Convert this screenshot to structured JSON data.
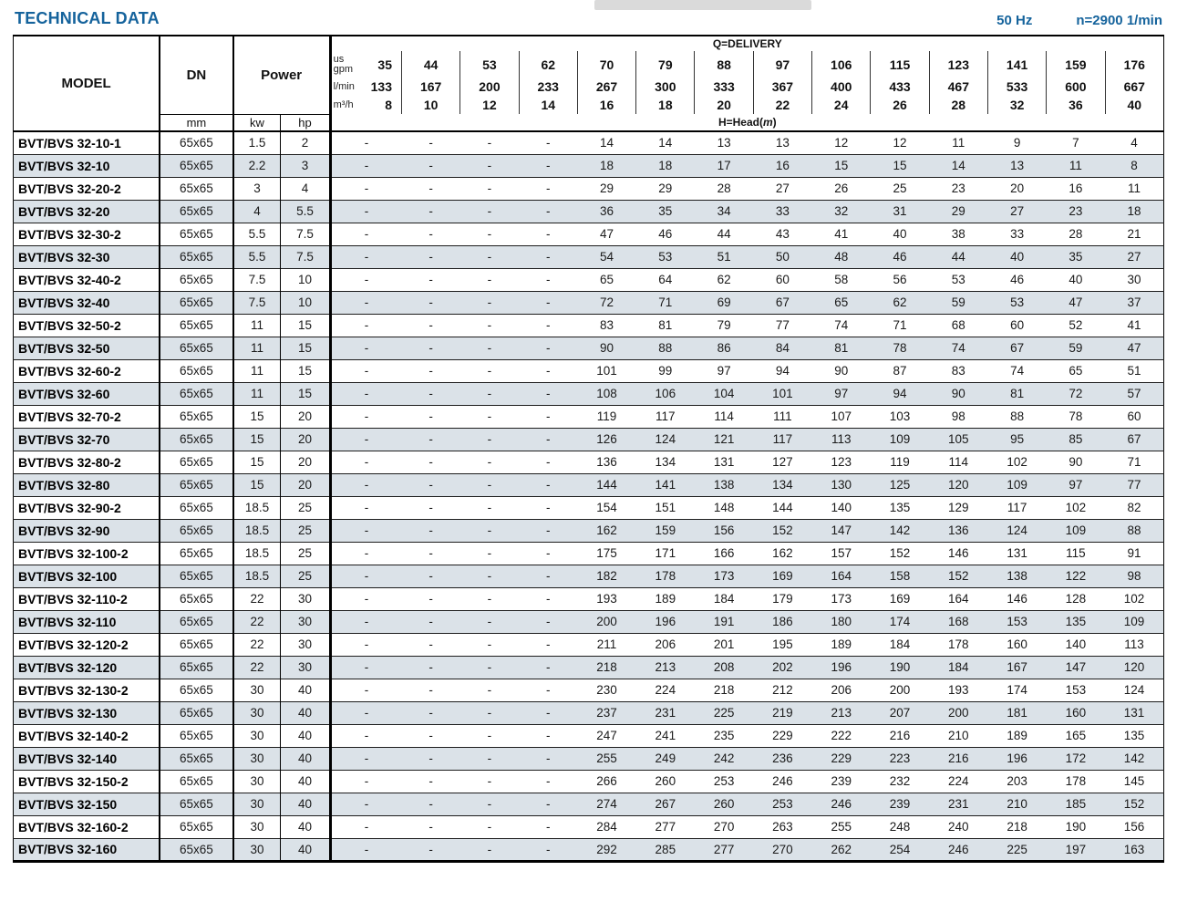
{
  "page": {
    "title": "TECHNICAL DATA",
    "frequency": "50 Hz",
    "speed": "n=2900 1/min"
  },
  "colors": {
    "accent_blue": "#15639c",
    "row_shade": "#dbe2e8",
    "border": "#000000"
  },
  "table": {
    "model_header": "MODEL",
    "dn_header": "DN",
    "dn_unit": "mm",
    "power_header": "Power",
    "kw_unit": "kw",
    "hp_unit": "hp",
    "delivery_label": "Q=DELIVERY",
    "head_label_pre": "H=Head(",
    "head_label_unit": "m",
    "head_label_post": ")",
    "unit_rows": [
      {
        "unit": "us gpm",
        "values": [
          "35",
          "44",
          "53",
          "62",
          "70",
          "79",
          "88",
          "97",
          "106",
          "115",
          "123",
          "141",
          "159",
          "176"
        ]
      },
      {
        "unit": "l/min",
        "values": [
          "133",
          "167",
          "200",
          "233",
          "267",
          "300",
          "333",
          "367",
          "400",
          "433",
          "467",
          "533",
          "600",
          "667"
        ]
      },
      {
        "unit": "m³/h",
        "values": [
          "8",
          "10",
          "12",
          "14",
          "16",
          "18",
          "20",
          "22",
          "24",
          "26",
          "28",
          "32",
          "36",
          "40"
        ]
      }
    ],
    "rows": [
      {
        "model": "BVT/BVS 32-10-1",
        "dn": "65x65",
        "kw": "1.5",
        "hp": "2",
        "head": [
          "-",
          "-",
          "-",
          "-",
          "14",
          "14",
          "13",
          "13",
          "12",
          "12",
          "11",
          "9",
          "7",
          "4"
        ]
      },
      {
        "model": "BVT/BVS 32-10",
        "dn": "65x65",
        "kw": "2.2",
        "hp": "3",
        "head": [
          "-",
          "-",
          "-",
          "-",
          "18",
          "18",
          "17",
          "16",
          "15",
          "15",
          "14",
          "13",
          "11",
          "8"
        ]
      },
      {
        "model": "BVT/BVS 32-20-2",
        "dn": "65x65",
        "kw": "3",
        "hp": "4",
        "head": [
          "-",
          "-",
          "-",
          "-",
          "29",
          "29",
          "28",
          "27",
          "26",
          "25",
          "23",
          "20",
          "16",
          "11"
        ]
      },
      {
        "model": "BVT/BVS 32-20",
        "dn": "65x65",
        "kw": "4",
        "hp": "5.5",
        "head": [
          "-",
          "-",
          "-",
          "-",
          "36",
          "35",
          "34",
          "33",
          "32",
          "31",
          "29",
          "27",
          "23",
          "18"
        ]
      },
      {
        "model": "BVT/BVS 32-30-2",
        "dn": "65x65",
        "kw": "5.5",
        "hp": "7.5",
        "head": [
          "-",
          "-",
          "-",
          "-",
          "47",
          "46",
          "44",
          "43",
          "41",
          "40",
          "38",
          "33",
          "28",
          "21"
        ]
      },
      {
        "model": "BVT/BVS 32-30",
        "dn": "65x65",
        "kw": "5.5",
        "hp": "7.5",
        "head": [
          "-",
          "-",
          "-",
          "-",
          "54",
          "53",
          "51",
          "50",
          "48",
          "46",
          "44",
          "40",
          "35",
          "27"
        ]
      },
      {
        "model": "BVT/BVS 32-40-2",
        "dn": "65x65",
        "kw": "7.5",
        "hp": "10",
        "head": [
          "-",
          "-",
          "-",
          "-",
          "65",
          "64",
          "62",
          "60",
          "58",
          "56",
          "53",
          "46",
          "40",
          "30"
        ]
      },
      {
        "model": "BVT/BVS 32-40",
        "dn": "65x65",
        "kw": "7.5",
        "hp": "10",
        "head": [
          "-",
          "-",
          "-",
          "-",
          "72",
          "71",
          "69",
          "67",
          "65",
          "62",
          "59",
          "53",
          "47",
          "37"
        ]
      },
      {
        "model": "BVT/BVS 32-50-2",
        "dn": "65x65",
        "kw": "11",
        "hp": "15",
        "head": [
          "-",
          "-",
          "-",
          "-",
          "83",
          "81",
          "79",
          "77",
          "74",
          "71",
          "68",
          "60",
          "52",
          "41"
        ]
      },
      {
        "model": "BVT/BVS 32-50",
        "dn": "65x65",
        "kw": "11",
        "hp": "15",
        "head": [
          "-",
          "-",
          "-",
          "-",
          "90",
          "88",
          "86",
          "84",
          "81",
          "78",
          "74",
          "67",
          "59",
          "47"
        ]
      },
      {
        "model": "BVT/BVS 32-60-2",
        "dn": "65x65",
        "kw": "11",
        "hp": "15",
        "head": [
          "-",
          "-",
          "-",
          "-",
          "101",
          "99",
          "97",
          "94",
          "90",
          "87",
          "83",
          "74",
          "65",
          "51"
        ]
      },
      {
        "model": "BVT/BVS 32-60",
        "dn": "65x65",
        "kw": "11",
        "hp": "15",
        "head": [
          "-",
          "-",
          "-",
          "-",
          "108",
          "106",
          "104",
          "101",
          "97",
          "94",
          "90",
          "81",
          "72",
          "57"
        ]
      },
      {
        "model": "BVT/BVS 32-70-2",
        "dn": "65x65",
        "kw": "15",
        "hp": "20",
        "head": [
          "-",
          "-",
          "-",
          "-",
          "119",
          "117",
          "114",
          "111",
          "107",
          "103",
          "98",
          "88",
          "78",
          "60"
        ]
      },
      {
        "model": "BVT/BVS 32-70",
        "dn": "65x65",
        "kw": "15",
        "hp": "20",
        "head": [
          "-",
          "-",
          "-",
          "-",
          "126",
          "124",
          "121",
          "117",
          "113",
          "109",
          "105",
          "95",
          "85",
          "67"
        ]
      },
      {
        "model": "BVT/BVS 32-80-2",
        "dn": "65x65",
        "kw": "15",
        "hp": "20",
        "head": [
          "-",
          "-",
          "-",
          "-",
          "136",
          "134",
          "131",
          "127",
          "123",
          "119",
          "114",
          "102",
          "90",
          "71"
        ]
      },
      {
        "model": "BVT/BVS 32-80",
        "dn": "65x65",
        "kw": "15",
        "hp": "20",
        "head": [
          "-",
          "-",
          "-",
          "-",
          "144",
          "141",
          "138",
          "134",
          "130",
          "125",
          "120",
          "109",
          "97",
          "77"
        ]
      },
      {
        "model": "BVT/BVS 32-90-2",
        "dn": "65x65",
        "kw": "18.5",
        "hp": "25",
        "head": [
          "-",
          "-",
          "-",
          "-",
          "154",
          "151",
          "148",
          "144",
          "140",
          "135",
          "129",
          "117",
          "102",
          "82"
        ]
      },
      {
        "model": "BVT/BVS 32-90",
        "dn": "65x65",
        "kw": "18.5",
        "hp": "25",
        "head": [
          "-",
          "-",
          "-",
          "-",
          "162",
          "159",
          "156",
          "152",
          "147",
          "142",
          "136",
          "124",
          "109",
          "88"
        ]
      },
      {
        "model": "BVT/BVS 32-100-2",
        "dn": "65x65",
        "kw": "18.5",
        "hp": "25",
        "head": [
          "-",
          "-",
          "-",
          "-",
          "175",
          "171",
          "166",
          "162",
          "157",
          "152",
          "146",
          "131",
          "115",
          "91"
        ]
      },
      {
        "model": "BVT/BVS 32-100",
        "dn": "65x65",
        "kw": "18.5",
        "hp": "25",
        "head": [
          "-",
          "-",
          "-",
          "-",
          "182",
          "178",
          "173",
          "169",
          "164",
          "158",
          "152",
          "138",
          "122",
          "98"
        ]
      },
      {
        "model": "BVT/BVS 32-110-2",
        "dn": "65x65",
        "kw": "22",
        "hp": "30",
        "head": [
          "-",
          "-",
          "-",
          "-",
          "193",
          "189",
          "184",
          "179",
          "173",
          "169",
          "164",
          "146",
          "128",
          "102"
        ]
      },
      {
        "model": "BVT/BVS 32-110",
        "dn": "65x65",
        "kw": "22",
        "hp": "30",
        "head": [
          "-",
          "-",
          "-",
          "-",
          "200",
          "196",
          "191",
          "186",
          "180",
          "174",
          "168",
          "153",
          "135",
          "109"
        ]
      },
      {
        "model": "BVT/BVS 32-120-2",
        "dn": "65x65",
        "kw": "22",
        "hp": "30",
        "head": [
          "-",
          "-",
          "-",
          "-",
          "211",
          "206",
          "201",
          "195",
          "189",
          "184",
          "178",
          "160",
          "140",
          "113"
        ]
      },
      {
        "model": "BVT/BVS 32-120",
        "dn": "65x65",
        "kw": "22",
        "hp": "30",
        "head": [
          "-",
          "-",
          "-",
          "-",
          "218",
          "213",
          "208",
          "202",
          "196",
          "190",
          "184",
          "167",
          "147",
          "120"
        ]
      },
      {
        "model": "BVT/BVS 32-130-2",
        "dn": "65x65",
        "kw": "30",
        "hp": "40",
        "head": [
          "-",
          "-",
          "-",
          "-",
          "230",
          "224",
          "218",
          "212",
          "206",
          "200",
          "193",
          "174",
          "153",
          "124"
        ]
      },
      {
        "model": "BVT/BVS 32-130",
        "dn": "65x65",
        "kw": "30",
        "hp": "40",
        "head": [
          "-",
          "-",
          "-",
          "-",
          "237",
          "231",
          "225",
          "219",
          "213",
          "207",
          "200",
          "181",
          "160",
          "131"
        ]
      },
      {
        "model": "BVT/BVS 32-140-2",
        "dn": "65x65",
        "kw": "30",
        "hp": "40",
        "head": [
          "-",
          "-",
          "-",
          "-",
          "247",
          "241",
          "235",
          "229",
          "222",
          "216",
          "210",
          "189",
          "165",
          "135"
        ]
      },
      {
        "model": "BVT/BVS 32-140",
        "dn": "65x65",
        "kw": "30",
        "hp": "40",
        "head": [
          "-",
          "-",
          "-",
          "-",
          "255",
          "249",
          "242",
          "236",
          "229",
          "223",
          "216",
          "196",
          "172",
          "142"
        ]
      },
      {
        "model": "BVT/BVS 32-150-2",
        "dn": "65x65",
        "kw": "30",
        "hp": "40",
        "head": [
          "-",
          "-",
          "-",
          "-",
          "266",
          "260",
          "253",
          "246",
          "239",
          "232",
          "224",
          "203",
          "178",
          "145"
        ]
      },
      {
        "model": "BVT/BVS 32-150",
        "dn": "65x65",
        "kw": "30",
        "hp": "40",
        "head": [
          "-",
          "-",
          "-",
          "-",
          "274",
          "267",
          "260",
          "253",
          "246",
          "239",
          "231",
          "210",
          "185",
          "152"
        ]
      },
      {
        "model": "BVT/BVS 32-160-2",
        "dn": "65x65",
        "kw": "30",
        "hp": "40",
        "head": [
          "-",
          "-",
          "-",
          "-",
          "284",
          "277",
          "270",
          "263",
          "255",
          "248",
          "240",
          "218",
          "190",
          "156"
        ]
      },
      {
        "model": "BVT/BVS 32-160",
        "dn": "65x65",
        "kw": "30",
        "hp": "40",
        "head": [
          "-",
          "-",
          "-",
          "-",
          "292",
          "285",
          "277",
          "270",
          "262",
          "254",
          "246",
          "225",
          "197",
          "163"
        ]
      }
    ]
  }
}
